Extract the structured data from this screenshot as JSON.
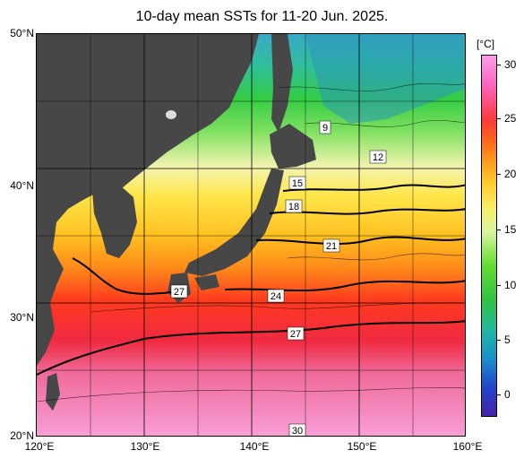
{
  "title": "10-day mean SSTs for 11-20 Jun. 2025.",
  "colorbar": {
    "unit": "[°C]",
    "ticks": [
      "30",
      "25",
      "20",
      "15",
      "10",
      "5",
      "0"
    ],
    "range": [
      -2,
      32
    ]
  },
  "axes": {
    "lat_labels": [
      "50°N",
      "40°N",
      "30°N",
      "20°N"
    ],
    "lon_labels": [
      "120°E",
      "130°E",
      "140°E",
      "150°E",
      "160°E"
    ]
  },
  "contour_labels": [
    "9",
    "12",
    "15",
    "18",
    "21",
    "24",
    "27",
    "27",
    "30"
  ],
  "colors": {
    "land": "#474747",
    "grid": "#000000"
  }
}
